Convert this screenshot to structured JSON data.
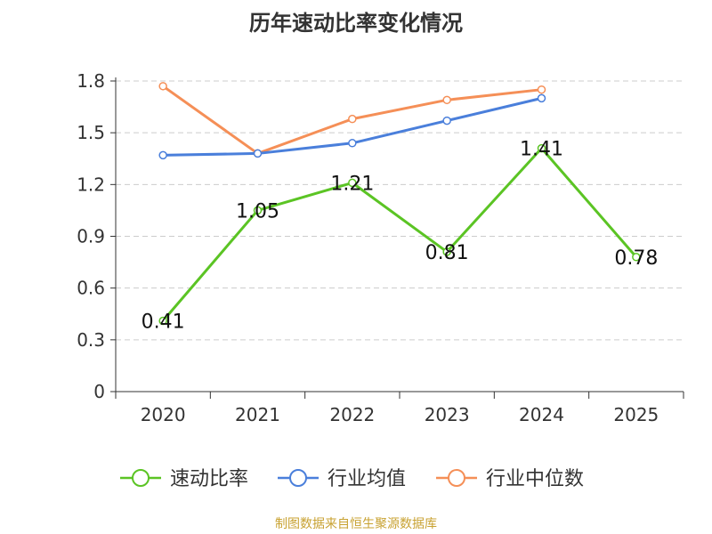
{
  "chart_data": {
    "type": "line",
    "title": "历年速动比率变化情况",
    "categories": [
      "2020",
      "2021",
      "2022",
      "2023",
      "2024",
      "2025"
    ],
    "y_ticks": [
      "0",
      "0.3",
      "0.6",
      "0.9",
      "1.2",
      "1.5",
      "1.8"
    ],
    "ylim": [
      0,
      1.8
    ],
    "grid": true,
    "legend_position": "bottom",
    "series": [
      {
        "name": "速动比率",
        "color": "#5bc424",
        "values": [
          0.41,
          1.05,
          1.21,
          0.81,
          1.41,
          0.78
        ],
        "labels": [
          "0.41",
          "1.05",
          "1.21",
          "0.81",
          "1.41",
          "0.78"
        ]
      },
      {
        "name": "行业均值",
        "color": "#4a7fdb",
        "values": [
          1.37,
          1.38,
          1.44,
          1.57,
          1.7,
          null
        ]
      },
      {
        "name": "行业中位数",
        "color": "#f58f57",
        "values": [
          1.77,
          1.38,
          1.58,
          1.69,
          1.75,
          null
        ]
      }
    ]
  },
  "footer": {
    "source": "制图数据来自恒生聚源数据库"
  }
}
